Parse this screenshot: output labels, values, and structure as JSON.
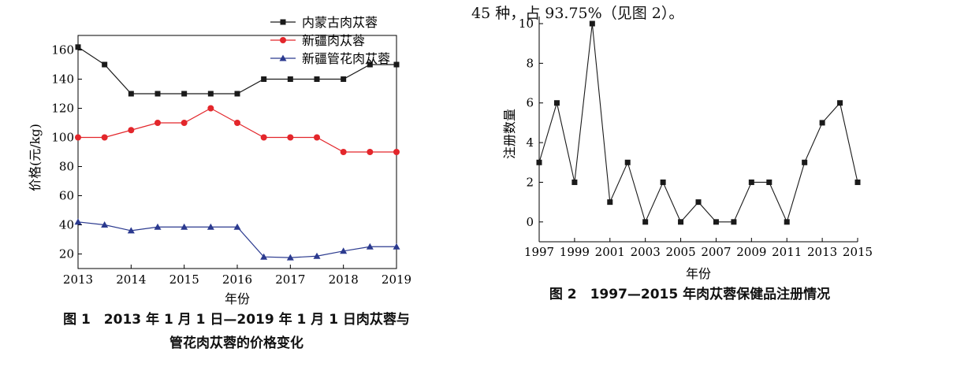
{
  "body_text": "45 种，占 93.75%（见图 2）。",
  "figure1": {
    "caption_line1": "图 1　2013 年 1 月 1 日—2019 年 1 月 1 日肉苁蓉与",
    "caption_line2": "管花肉苁蓉的价格变化"
  },
  "figure2": {
    "caption": "图 2　1997—2015 年肉苁蓉保健品注册情况"
  },
  "chart_data": [
    {
      "type": "line",
      "title": "",
      "xlabel": "年份",
      "ylabel": "价格(元/kg)",
      "xlim": [
        2013,
        2019
      ],
      "ylim": [
        10,
        170
      ],
      "xticks": [
        "2013",
        "2014",
        "2015",
        "2016",
        "2017",
        "2018",
        "2019"
      ],
      "yticks": [
        "20",
        "40",
        "60",
        "80",
        "100",
        "120",
        "140",
        "160"
      ],
      "legend_position": "top-right",
      "x": [
        2013,
        2013.5,
        2014,
        2014.5,
        2015,
        2015.5,
        2016,
        2016.5,
        2017,
        2017.5,
        2018,
        2018.5,
        2019
      ],
      "series": [
        {
          "name": "内蒙古肉苁蓉",
          "color": "#1a1a1a",
          "marker": "square",
          "values": [
            162,
            150,
            130,
            130,
            130,
            130,
            130,
            140,
            140,
            140,
            140,
            150,
            150
          ]
        },
        {
          "name": "新疆肉苁蓉",
          "color": "#e3262b",
          "marker": "circle",
          "values": [
            100,
            100,
            105,
            110,
            110,
            120,
            110,
            100,
            100,
            100,
            90,
            90,
            90
          ]
        },
        {
          "name": "新疆管花肉苁蓉",
          "color": "#2b3a8f",
          "marker": "triangle",
          "values": [
            42,
            40,
            36,
            38.5,
            38.5,
            38.5,
            38.5,
            18,
            17.5,
            18.5,
            22,
            25,
            25
          ]
        }
      ]
    },
    {
      "type": "line",
      "title": "",
      "xlabel": "年份",
      "ylabel": "注册数量",
      "xlim": [
        1997,
        2015
      ],
      "ylim": [
        -1,
        10
      ],
      "xticks": [
        "1997",
        "1999",
        "2001",
        "2003",
        "2005",
        "2007",
        "2009",
        "2011",
        "2013",
        "2015"
      ],
      "yticks": [
        "0",
        "2",
        "4",
        "6",
        "8",
        "10"
      ],
      "x": [
        1997,
        1998,
        1999,
        2000,
        2001,
        2002,
        2003,
        2004,
        2005,
        2006,
        2007,
        2008,
        2009,
        2010,
        2011,
        2012,
        2013,
        2014,
        2015
      ],
      "series": [
        {
          "color": "#1a1a1a",
          "marker": "square",
          "values": [
            3,
            6,
            2,
            10,
            1,
            3,
            0,
            2,
            0,
            1,
            0,
            0,
            2,
            2,
            0,
            3,
            5,
            6,
            2
          ]
        }
      ]
    }
  ]
}
